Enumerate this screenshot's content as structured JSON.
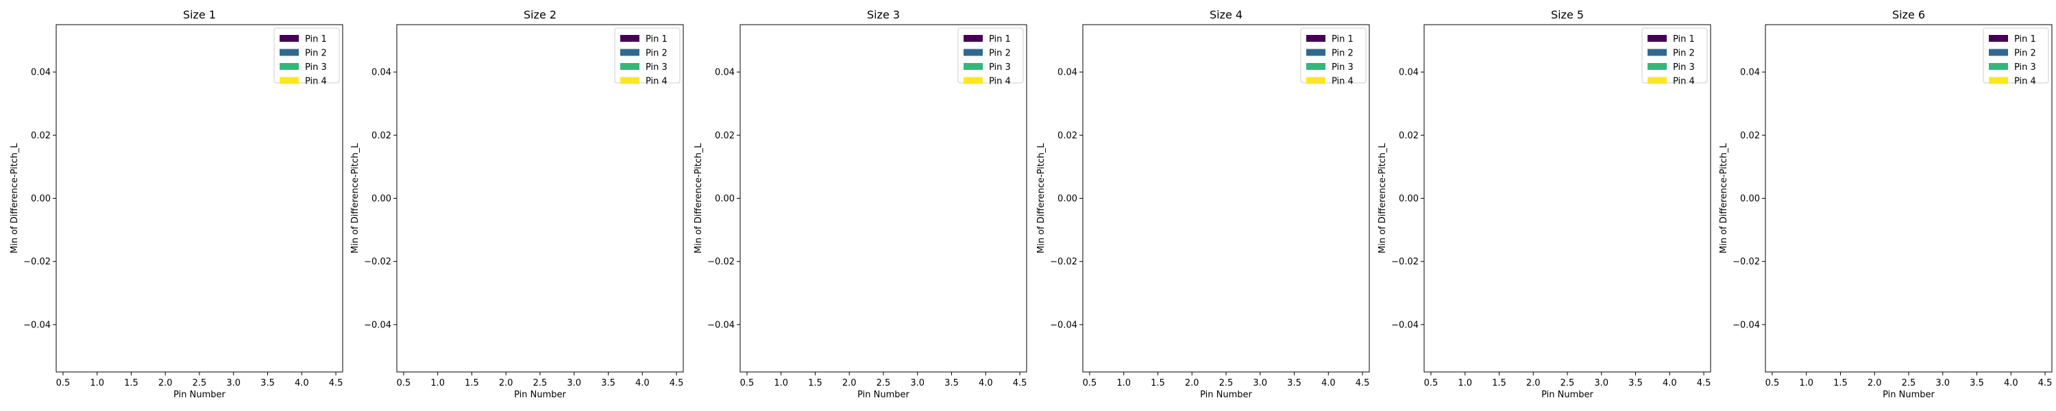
{
  "chart_data": [
    {
      "type": "bar",
      "title": "Size 1",
      "xlabel": "Pin Number",
      "ylabel": "Min of Difference-Pitch_L",
      "xlim": [
        0.4,
        4.6
      ],
      "ylim": [
        -0.055,
        0.055
      ],
      "xticks": [
        "0.5",
        "1.0",
        "1.5",
        "2.0",
        "2.5",
        "3.0",
        "3.5",
        "4.0",
        "4.5"
      ],
      "yticks": [
        "0.04",
        "0.02",
        "0.00",
        "−0.02",
        "−0.04"
      ],
      "grid": false,
      "legend_position": "top-right",
      "series": [
        {
          "name": "Pin 1",
          "color": "#440154",
          "values": []
        },
        {
          "name": "Pin 2",
          "color": "#31688e",
          "values": []
        },
        {
          "name": "Pin 3",
          "color": "#35b779",
          "values": []
        },
        {
          "name": "Pin 4",
          "color": "#fde725",
          "values": []
        }
      ]
    },
    {
      "type": "bar",
      "title": "Size 2",
      "xlabel": "Pin Number",
      "ylabel": "Min of Difference-Pitch_L",
      "xlim": [
        0.4,
        4.6
      ],
      "ylim": [
        -0.055,
        0.055
      ],
      "xticks": [
        "0.5",
        "1.0",
        "1.5",
        "2.0",
        "2.5",
        "3.0",
        "3.5",
        "4.0",
        "4.5"
      ],
      "yticks": [
        "0.04",
        "0.02",
        "0.00",
        "−0.02",
        "−0.04"
      ],
      "grid": false,
      "legend_position": "top-right",
      "series": [
        {
          "name": "Pin 1",
          "color": "#440154",
          "values": []
        },
        {
          "name": "Pin 2",
          "color": "#31688e",
          "values": []
        },
        {
          "name": "Pin 3",
          "color": "#35b779",
          "values": []
        },
        {
          "name": "Pin 4",
          "color": "#fde725",
          "values": []
        }
      ]
    },
    {
      "type": "bar",
      "title": "Size 3",
      "xlabel": "Pin Number",
      "ylabel": "Min of Difference-Pitch_L",
      "xlim": [
        0.4,
        4.6
      ],
      "ylim": [
        -0.055,
        0.055
      ],
      "xticks": [
        "0.5",
        "1.0",
        "1.5",
        "2.0",
        "2.5",
        "3.0",
        "3.5",
        "4.0",
        "4.5"
      ],
      "yticks": [
        "0.04",
        "0.02",
        "0.00",
        "−0.02",
        "−0.04"
      ],
      "grid": false,
      "legend_position": "top-right",
      "series": [
        {
          "name": "Pin 1",
          "color": "#440154",
          "values": []
        },
        {
          "name": "Pin 2",
          "color": "#31688e",
          "values": []
        },
        {
          "name": "Pin 3",
          "color": "#35b779",
          "values": []
        },
        {
          "name": "Pin 4",
          "color": "#fde725",
          "values": []
        }
      ]
    },
    {
      "type": "bar",
      "title": "Size 4",
      "xlabel": "Pin Number",
      "ylabel": "Min of Difference-Pitch_L",
      "xlim": [
        0.4,
        4.6
      ],
      "ylim": [
        -0.055,
        0.055
      ],
      "xticks": [
        "0.5",
        "1.0",
        "1.5",
        "2.0",
        "2.5",
        "3.0",
        "3.5",
        "4.0",
        "4.5"
      ],
      "yticks": [
        "0.04",
        "0.02",
        "0.00",
        "−0.02",
        "−0.04"
      ],
      "grid": false,
      "legend_position": "top-right",
      "series": [
        {
          "name": "Pin 1",
          "color": "#440154",
          "values": []
        },
        {
          "name": "Pin 2",
          "color": "#31688e",
          "values": []
        },
        {
          "name": "Pin 3",
          "color": "#35b779",
          "values": []
        },
        {
          "name": "Pin 4",
          "color": "#fde725",
          "values": []
        }
      ]
    },
    {
      "type": "bar",
      "title": "Size 5",
      "xlabel": "Pin Number",
      "ylabel": "Min of Difference-Pitch_L",
      "xlim": [
        0.4,
        4.6
      ],
      "ylim": [
        -0.055,
        0.055
      ],
      "xticks": [
        "0.5",
        "1.0",
        "1.5",
        "2.0",
        "2.5",
        "3.0",
        "3.5",
        "4.0",
        "4.5"
      ],
      "yticks": [
        "0.04",
        "0.02",
        "0.00",
        "−0.02",
        "−0.04"
      ],
      "grid": false,
      "legend_position": "top-right",
      "series": [
        {
          "name": "Pin 1",
          "color": "#440154",
          "values": []
        },
        {
          "name": "Pin 2",
          "color": "#31688e",
          "values": []
        },
        {
          "name": "Pin 3",
          "color": "#35b779",
          "values": []
        },
        {
          "name": "Pin 4",
          "color": "#fde725",
          "values": []
        }
      ]
    },
    {
      "type": "bar",
      "title": "Size 6",
      "xlabel": "Pin Number",
      "ylabel": "Min of Difference-Pitch_L",
      "xlim": [
        0.4,
        4.6
      ],
      "ylim": [
        -0.055,
        0.055
      ],
      "xticks": [
        "0.5",
        "1.0",
        "1.5",
        "2.0",
        "2.5",
        "3.0",
        "3.5",
        "4.0",
        "4.5"
      ],
      "yticks": [
        "0.04",
        "0.02",
        "0.00",
        "−0.02",
        "−0.04"
      ],
      "grid": false,
      "legend_position": "top-right",
      "series": [
        {
          "name": "Pin 1",
          "color": "#440154",
          "values": []
        },
        {
          "name": "Pin 2",
          "color": "#31688e",
          "values": []
        },
        {
          "name": "Pin 3",
          "color": "#35b779",
          "values": []
        },
        {
          "name": "Pin 4",
          "color": "#fde725",
          "values": []
        }
      ]
    }
  ]
}
